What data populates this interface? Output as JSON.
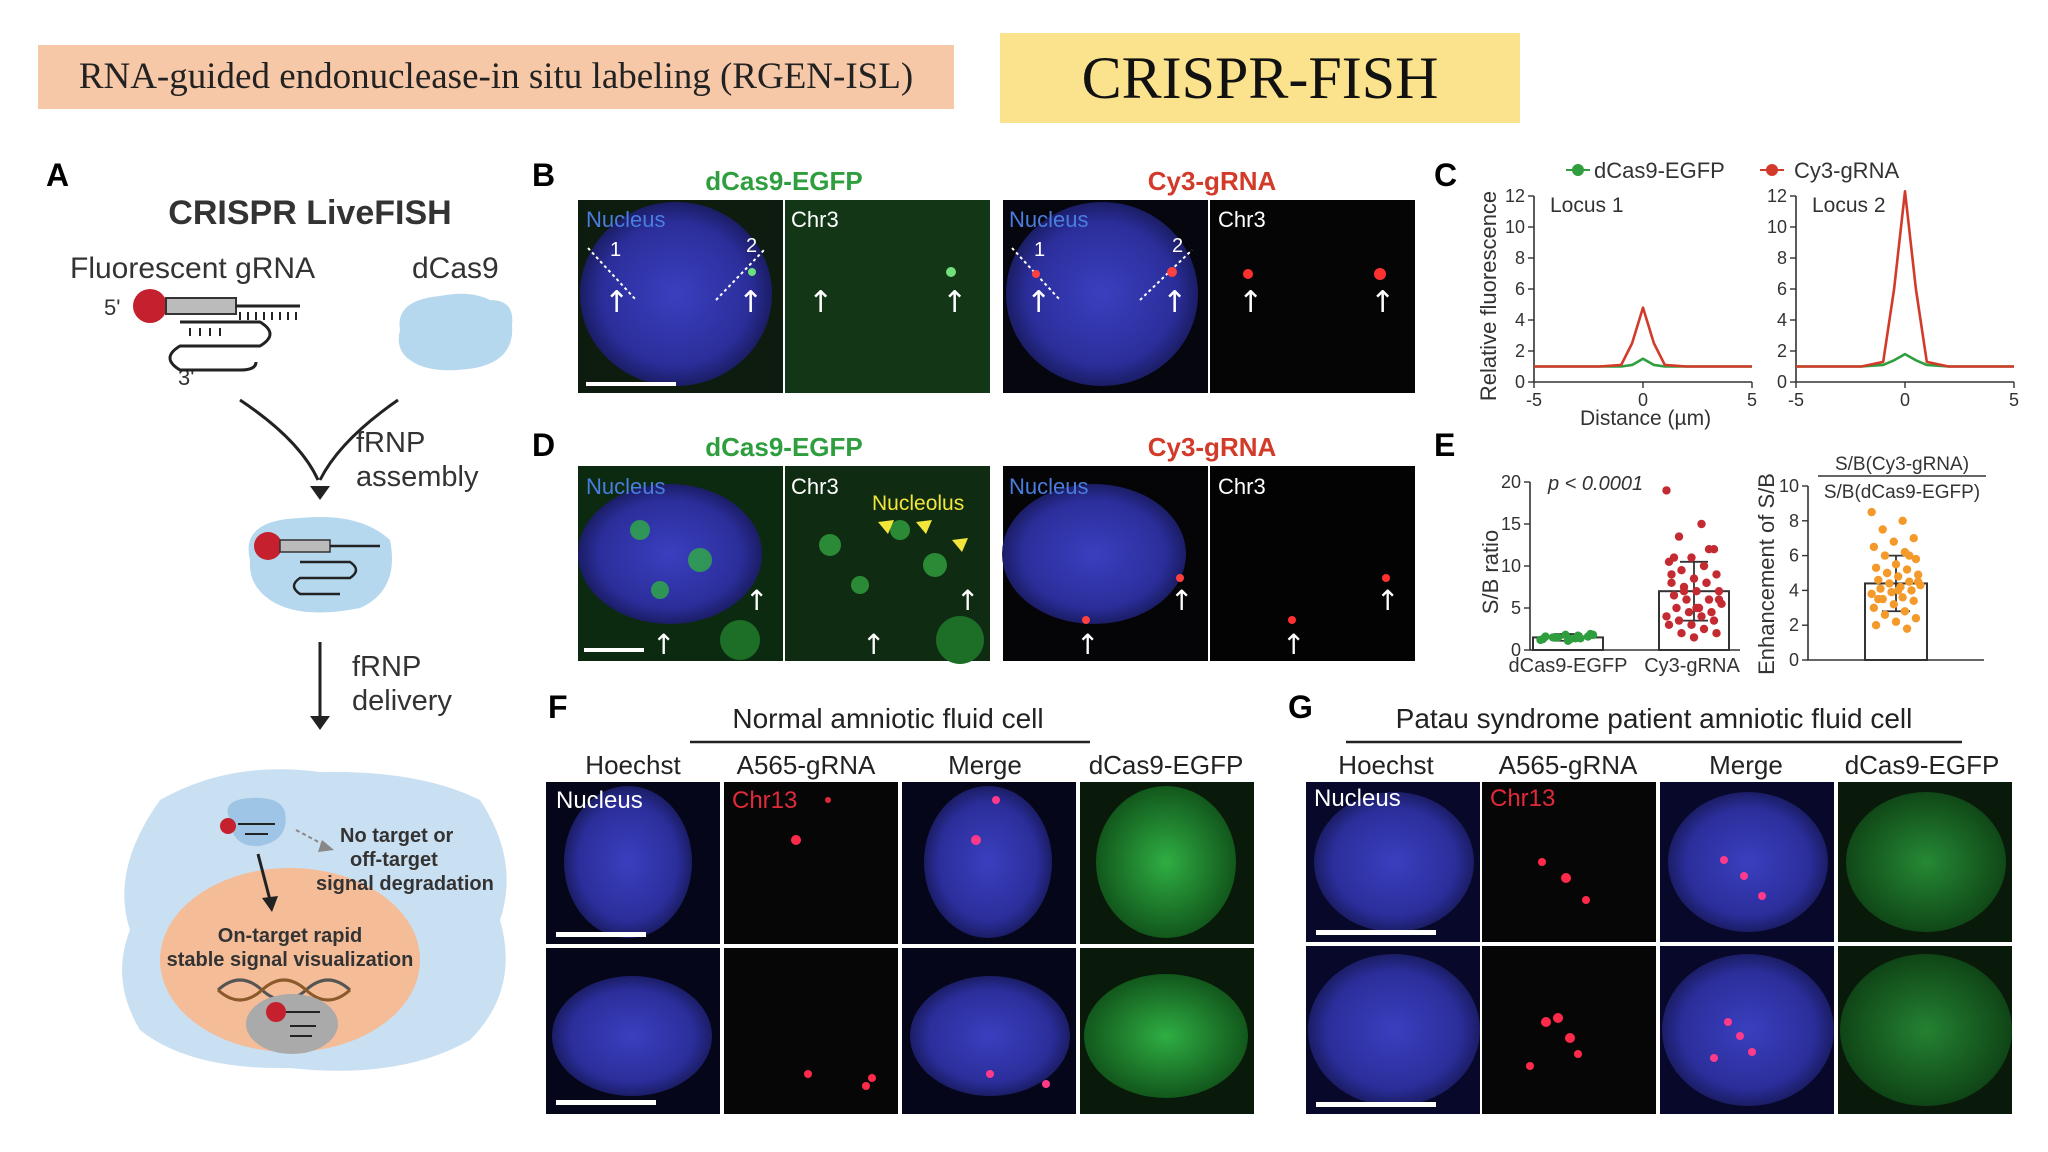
{
  "header": {
    "rgen_label": "RNA-guided endonuclease-in situ labeling (RGEN-ISL)",
    "title": "CRISPR-FISH",
    "colors": {
      "rgen_bg": "#f7c8a7",
      "title_bg": "#fbe38e"
    }
  },
  "panel_a": {
    "letter": "A",
    "title": "CRISPR LiveFISH",
    "grna_label": "Fluorescent gRNA",
    "dcas9_label": "dCas9",
    "five_prime": "5'",
    "three_prime": "3'",
    "step1_line1": "fRNP",
    "step1_line2": "assembly",
    "step2_line1": "fRNP",
    "step2_line2": "delivery",
    "no_target_line1": "No target or",
    "no_target_line2": "off-target",
    "no_target_line3": "signal degradation",
    "on_target_line1": "On-target rapid",
    "on_target_line2": "stable signal visualization"
  },
  "panel_b": {
    "letter": "B",
    "left_title": "dCas9-EGFP",
    "right_title": "Cy3-gRNA",
    "nucleus": "Nucleus",
    "chr": "Chr3",
    "locus1": "1",
    "locus2": "2",
    "arrow": "↑"
  },
  "panel_c": {
    "letter": "C",
    "legend_green": "dCas9-EGFP",
    "legend_red": "Cy3-gRNA",
    "ylabel": "Relative fluorescence",
    "xlabel": "Distance (µm)",
    "plot1_label": "Locus 1",
    "plot2_label": "Locus 2",
    "yticks": [
      "0",
      "2",
      "4",
      "6",
      "8",
      "10",
      "12"
    ],
    "xticks": [
      "-5",
      "0",
      "5"
    ]
  },
  "panel_d": {
    "letter": "D",
    "left_title": "dCas9-EGFP",
    "right_title": "Cy3-gRNA",
    "nucleus": "Nucleus",
    "chr": "Chr3",
    "nucleolus": "Nucleolus"
  },
  "panel_e": {
    "letter": "E",
    "pvalue": "p < 0.0001",
    "ylabel1": "S/B ratio",
    "ylabel2": "Enhancement of S/B",
    "ratio_num": "S/B(Cy3-gRNA)",
    "ratio_den": "S/B(dCas9-EGFP)",
    "yticks1": [
      "0",
      "5",
      "10",
      "15",
      "20"
    ],
    "yticks2": [
      "0",
      "2",
      "4",
      "6",
      "8",
      "10"
    ],
    "cat1": "dCas9-EGFP",
    "cat2": "Cy3-gRNA"
  },
  "panel_f": {
    "letter": "F",
    "title": "Normal amniotic fluid cell",
    "cols": [
      "Hoechst",
      "A565-gRNA",
      "Merge",
      "dCas9-EGFP"
    ],
    "nucleus": "Nucleus",
    "chr": "Chr13"
  },
  "panel_g": {
    "letter": "G",
    "title": "Patau syndrome patient  amniotic fluid cell",
    "cols": [
      "Hoechst",
      "A565-gRNA",
      "Merge",
      "dCas9-EGFP"
    ],
    "nucleus": "Nucleus",
    "chr": "Chr13"
  },
  "chart_data": [
    {
      "type": "line",
      "title": "Locus 1",
      "xlabel": "Distance (µm)",
      "ylabel": "Relative fluorescence",
      "xlim": [
        -5,
        5
      ],
      "ylim": [
        0,
        12
      ],
      "x": [
        -5,
        -2,
        -1,
        -0.5,
        0,
        0.5,
        1,
        2,
        5
      ],
      "series": [
        {
          "name": "dCas9-EGFP",
          "color": "#2e9e3e",
          "values": [
            1,
            1,
            1,
            1.1,
            1.5,
            1.1,
            1,
            1,
            1
          ]
        },
        {
          "name": "Cy3-gRNA",
          "color": "#d23a2a",
          "values": [
            1,
            1,
            1.1,
            2.5,
            4.8,
            2.5,
            1.1,
            1,
            1
          ]
        }
      ]
    },
    {
      "type": "line",
      "title": "Locus 2",
      "xlabel": "Distance (µm)",
      "xlim": [
        -5,
        5
      ],
      "ylim": [
        0,
        12
      ],
      "x": [
        -5,
        -2,
        -1,
        -0.5,
        0,
        0.5,
        1,
        2,
        5
      ],
      "series": [
        {
          "name": "dCas9-EGFP",
          "color": "#2e9e3e",
          "values": [
            1,
            1,
            1.1,
            1.4,
            1.8,
            1.4,
            1.1,
            1,
            1
          ]
        },
        {
          "name": "Cy3-gRNA",
          "color": "#d23a2a",
          "values": [
            1,
            1,
            1.3,
            6,
            12.3,
            6,
            1.3,
            1,
            1
          ]
        }
      ]
    },
    {
      "type": "scatter",
      "title": "",
      "ylabel": "S/B ratio",
      "categories": [
        "dCas9-EGFP",
        "Cy3-gRNA"
      ],
      "ylim": [
        0,
        20
      ],
      "series": [
        {
          "name": "dCas9-EGFP",
          "color": "#2e9e3e",
          "mean": 1.5,
          "sd": 0.4,
          "values": [
            1.2,
            1.4,
            1.5,
            1.6,
            1.8,
            1.3,
            1.7,
            1.5,
            1.9,
            1.1,
            1.6,
            1.4,
            1.5,
            1.8,
            1.3
          ]
        },
        {
          "name": "Cy3-gRNA",
          "color": "#c42a32",
          "mean": 7,
          "sd": 3.5,
          "values": [
            19,
            15,
            13.5,
            12,
            11,
            10.5,
            10,
            9.5,
            9,
            8.5,
            8,
            8,
            7.5,
            7,
            7,
            6.5,
            6,
            6,
            5.5,
            5,
            5,
            4.5,
            4.5,
            4,
            4,
            3.5,
            3.5,
            3,
            3,
            2.5,
            2,
            2,
            1.5,
            9,
            8,
            7,
            6,
            5,
            11,
            12
          ]
        }
      ]
    },
    {
      "type": "scatter",
      "title": "",
      "ylabel": "Enhancement of S/B",
      "categories": [
        ""
      ],
      "ylim": [
        0,
        10
      ],
      "series": [
        {
          "name": "S/B(Cy3-gRNA) / S/B(dCas9-EGFP)",
          "color": "#f39a2a",
          "mean": 4.4,
          "sd": 1.6,
          "values": [
            8.5,
            8,
            7.5,
            7,
            6.8,
            6.5,
            6.2,
            6,
            5.8,
            5.5,
            5.3,
            5.2,
            5,
            4.9,
            4.8,
            4.6,
            4.5,
            4.4,
            4.3,
            4.2,
            4.1,
            4,
            3.9,
            3.8,
            3.6,
            3.5,
            3.4,
            3.2,
            3,
            2.8,
            2.6,
            2.4,
            2.2,
            2,
            1.8,
            5,
            4.5,
            4,
            3.5,
            6
          ]
        }
      ]
    }
  ]
}
